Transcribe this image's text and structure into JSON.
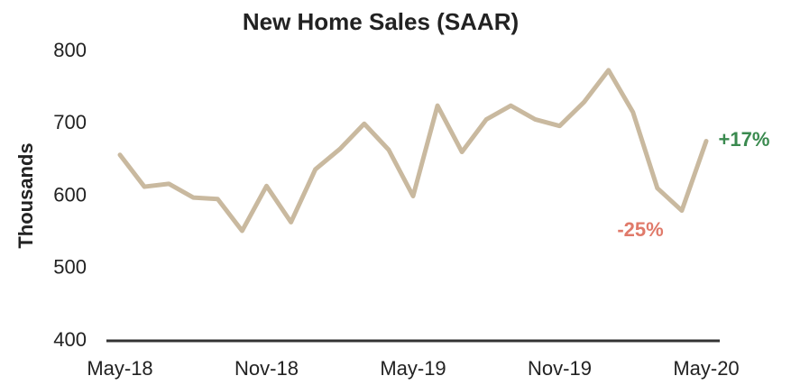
{
  "chart_data": {
    "type": "line",
    "title": "New Home Sales (SAAR)",
    "ylabel": "Thousands",
    "categories": [
      "May-18",
      null,
      null,
      null,
      null,
      null,
      "Nov-18",
      null,
      null,
      null,
      null,
      null,
      "May-19",
      null,
      null,
      null,
      null,
      null,
      "Nov-19",
      null,
      null,
      null,
      null,
      null,
      "May-20"
    ],
    "series": [
      {
        "name": "New Home Sales",
        "color": "#c9b99f",
        "values": [
          657,
          613,
          617,
          598,
          596,
          552,
          614,
          564,
          637,
          665,
          700,
          664,
          600,
          725,
          661,
          706,
          725,
          706,
          697,
          730,
          774,
          716,
          611,
          580,
          676
        ]
      }
    ],
    "ylim": [
      400,
      800
    ],
    "yticks": [
      400,
      500,
      600,
      700,
      800
    ],
    "grid": false,
    "annotations": [
      {
        "text": "+17%",
        "color": "#3a8a4f"
      },
      {
        "text": "-25%",
        "color": "#e07a6a"
      }
    ]
  }
}
